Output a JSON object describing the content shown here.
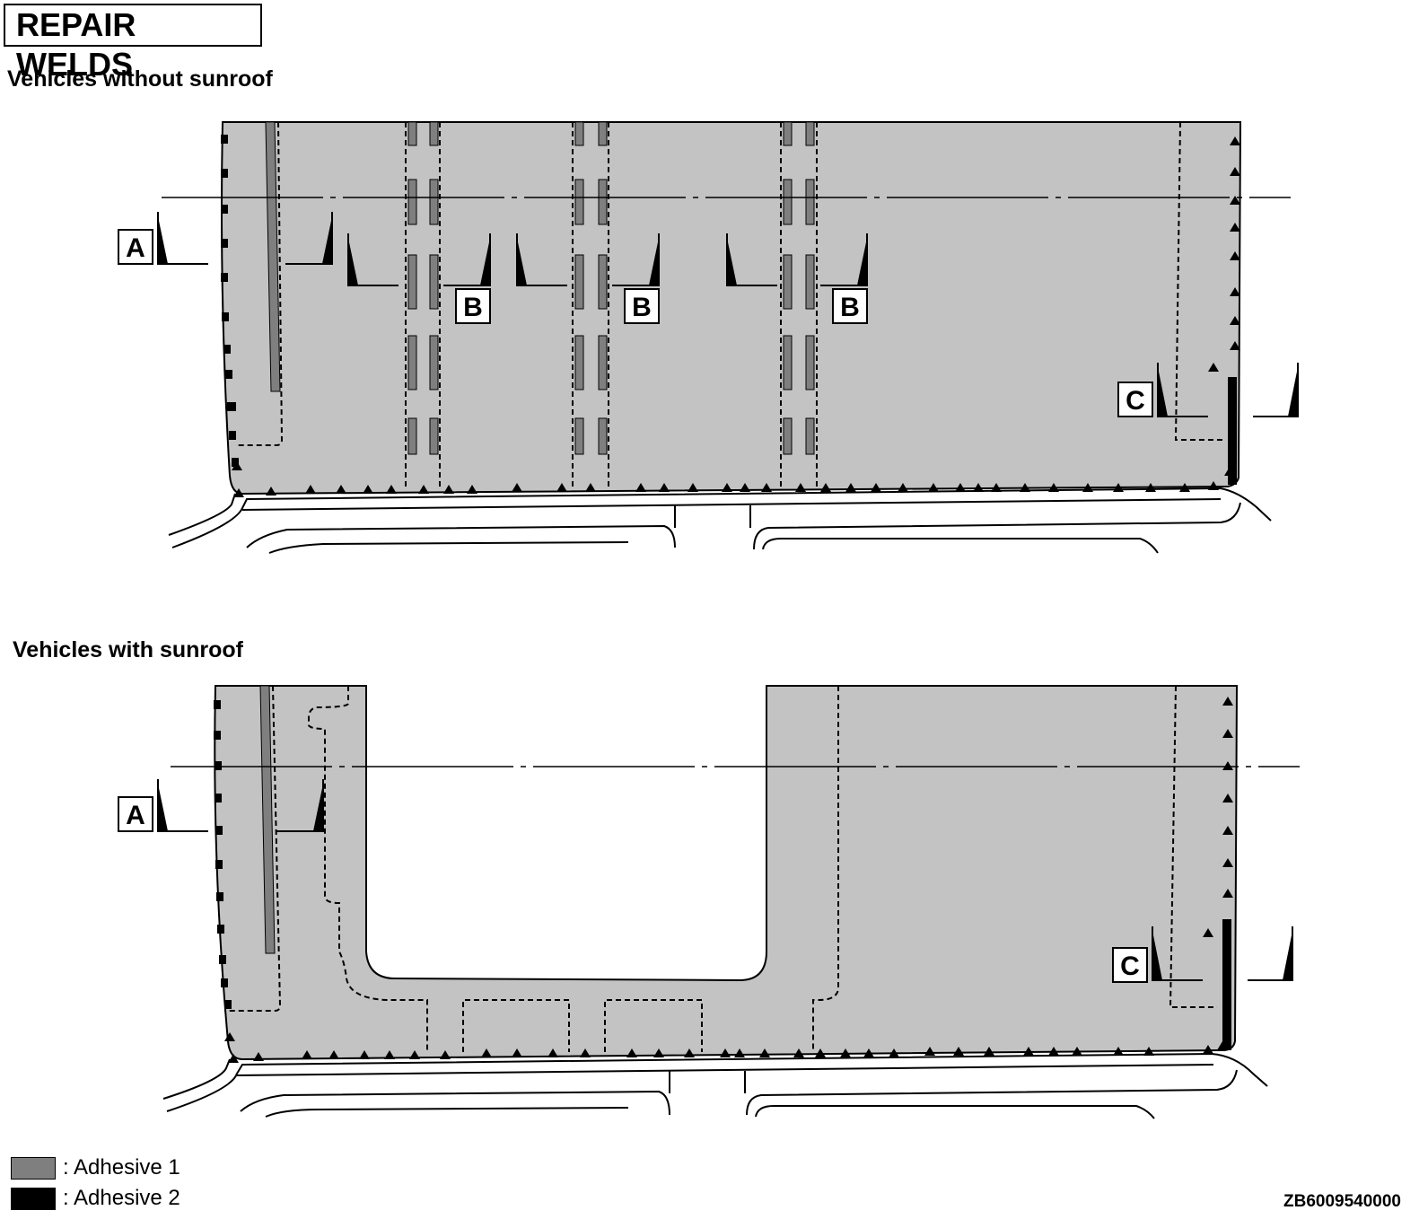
{
  "title": "REPAIR WELDS",
  "sections": [
    {
      "heading": "Vehicles without sunroof",
      "callouts": [
        "A",
        "B",
        "B",
        "B",
        "C"
      ]
    },
    {
      "heading": "Vehicles with sunroof",
      "callouts": [
        "A",
        "C"
      ]
    }
  ],
  "legend": [
    {
      "label": ": Adhesive 1",
      "color": "#7f7f7f"
    },
    {
      "label": ": Adhesive 2",
      "color": "#000000"
    }
  ],
  "figure_id": "ZB6009540000",
  "colors": {
    "panel": "#c3c3c3",
    "adhesive_1": "#7f7f7f",
    "adhesive_2": "#000000"
  }
}
